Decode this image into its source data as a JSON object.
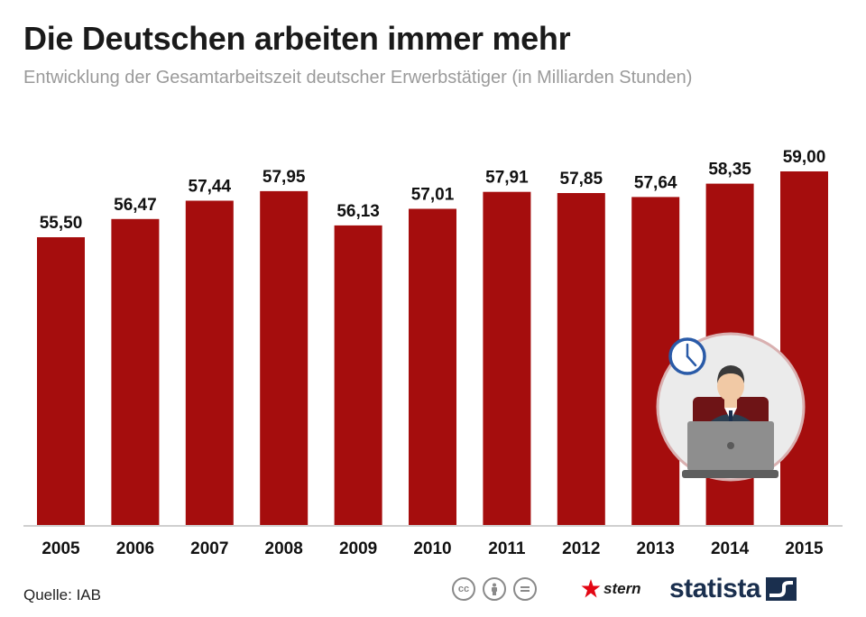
{
  "header": {
    "title": "Die Deutschen arbeiten immer mehr",
    "subtitle": "Entwicklung der Gesamtarbeitszeit deutscher Erwerbstätiger (in Milliarden Stunden)"
  },
  "chart_data": {
    "type": "bar",
    "title": "Die Deutschen arbeiten immer mehr",
    "subtitle": "Entwicklung der Gesamtarbeitszeit deutscher Erwerbstätiger (in Milliarden Stunden)",
    "categories": [
      "2005",
      "2006",
      "2007",
      "2008",
      "2009",
      "2010",
      "2011",
      "2012",
      "2013",
      "2014",
      "2015"
    ],
    "values": [
      55.5,
      56.47,
      57.44,
      57.95,
      56.13,
      57.01,
      57.91,
      57.85,
      57.64,
      58.35,
      59.0
    ],
    "value_labels": [
      "55,50",
      "56,47",
      "57,44",
      "57,95",
      "56,13",
      "57,01",
      "57,91",
      "57,85",
      "57,64",
      "58,35",
      "59,00"
    ],
    "xlabel": "",
    "ylabel": "",
    "grid": false,
    "bar_color": "#a50d0d"
  },
  "footer": {
    "source": "Quelle: IAB",
    "cc_icons": [
      "cc-icon",
      "by-person-icon",
      "nd-equals-icon"
    ],
    "stern_label": "stern",
    "statista_label": "statista"
  },
  "colors": {
    "bar": "#a50d0d",
    "illustration_circle": "#ebebeb",
    "illustration_ring": "#d9b0b0",
    "clock_blue": "#2a5ba8",
    "statista_navy": "#1a2f4e"
  }
}
